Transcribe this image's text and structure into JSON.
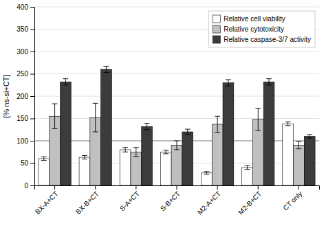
{
  "chart_data": {
    "type": "bar",
    "categories": [
      "BX-A+CT",
      "BX-B+CT",
      "S-A+CT",
      "S-B+CT",
      "M2-A+CT",
      "M2-B+CT",
      "CT only"
    ],
    "series": [
      {
        "name": "Relative cell viability",
        "color": "#ffffff",
        "values": [
          60,
          63,
          80,
          75,
          28,
          40,
          138
        ],
        "errors": [
          4,
          4,
          5,
          4,
          3,
          4,
          4
        ]
      },
      {
        "name": "Relative cytotoxicity",
        "color": "#c0c0c0",
        "values": [
          155,
          152,
          75,
          90,
          137,
          148,
          90
        ],
        "errors": [
          28,
          32,
          10,
          10,
          18,
          25,
          8
        ]
      },
      {
        "name": "Relative caspase-3/7 activity",
        "color": "#3c3c3c",
        "values": [
          232,
          260,
          132,
          120,
          230,
          232,
          110
        ],
        "errors": [
          7,
          7,
          7,
          6,
          7,
          7,
          4
        ]
      }
    ],
    "ylabel": "[% ns-si+CT]",
    "ylim": [
      0,
      400
    ],
    "yticks": [
      0,
      50,
      100,
      150,
      200,
      250,
      300,
      350,
      400
    ],
    "reference_line": 100,
    "grid": true,
    "legend": "upper right"
  }
}
